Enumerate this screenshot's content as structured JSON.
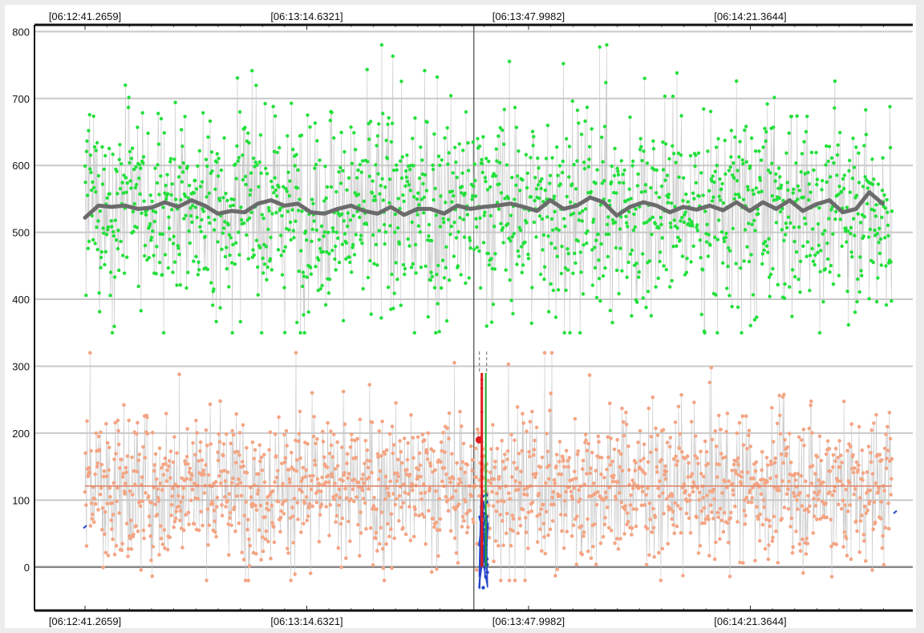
{
  "chart_data": {
    "type": "scatter",
    "title": "",
    "xlabel": "",
    "ylabel": "",
    "ylim": [
      -65,
      810
    ],
    "y_ticks": [
      0,
      100,
      200,
      300,
      400,
      500,
      600,
      700,
      800
    ],
    "y_tick_labels": [
      "0",
      "100",
      "200",
      "300",
      "400",
      "500",
      "600",
      "700",
      "800"
    ],
    "x_tick_labels_top": [
      "[06:12:41.2659]",
      "[06:13:14.6321]",
      "[06:13:47.9982]",
      "[06:14:21.3644]"
    ],
    "x_tick_labels_bottom": [
      "[06:12:41.2659]",
      "[06:13:14.6321]",
      "[06:13:47.9982]",
      "[06:14:21.3644]"
    ],
    "x_range_seconds": [
      0,
      121.4
    ],
    "x_ticks_seconds": [
      0,
      33.3662,
      66.7323,
      100.0985
    ],
    "cursor_time_seconds": 58.5,
    "grid": true,
    "legend": "none",
    "colors": {
      "upper_points": "#22e03a",
      "upper_connector": "#c9c9c9",
      "upper_trend": "#6b6b6b",
      "lower_points": "#f4a584",
      "lower_connector": "#c9c9c9",
      "lower_mean": "#e0876a",
      "marker_red": "#e01b1b",
      "marker_green": "#1ea52a",
      "marker_blue": "#2545c8",
      "cursor": "#444444",
      "gridline": "#c8c8c8",
      "zero_line": "#888888"
    },
    "series": [
      {
        "kind": "upper_scatter",
        "mean": 535,
        "spread": [
          350,
          780
        ],
        "point_count": 1600,
        "trend": [
          [
            0,
            522
          ],
          [
            2,
            540
          ],
          [
            4,
            538
          ],
          [
            6,
            540
          ],
          [
            8,
            535
          ],
          [
            10,
            537
          ],
          [
            12,
            545
          ],
          [
            14,
            538
          ],
          [
            16,
            548
          ],
          [
            18,
            540
          ],
          [
            20,
            528
          ],
          [
            22,
            532
          ],
          [
            24,
            530
          ],
          [
            26,
            543
          ],
          [
            28,
            548
          ],
          [
            30,
            540
          ],
          [
            32,
            543
          ],
          [
            34,
            530
          ],
          [
            36,
            528
          ],
          [
            38,
            535
          ],
          [
            40,
            540
          ],
          [
            42,
            532
          ],
          [
            44,
            528
          ],
          [
            46,
            538
          ],
          [
            48,
            526
          ],
          [
            50,
            535
          ],
          [
            52,
            535
          ],
          [
            54,
            528
          ],
          [
            56,
            540
          ],
          [
            58,
            535
          ],
          [
            60,
            538
          ],
          [
            62,
            540
          ],
          [
            64,
            543
          ],
          [
            66,
            538
          ],
          [
            68,
            532
          ],
          [
            70,
            548
          ],
          [
            72,
            535
          ],
          [
            74,
            540
          ],
          [
            76,
            552
          ],
          [
            78,
            545
          ],
          [
            80,
            525
          ],
          [
            82,
            538
          ],
          [
            84,
            545
          ],
          [
            86,
            540
          ],
          [
            88,
            530
          ],
          [
            90,
            538
          ],
          [
            92,
            534
          ],
          [
            94,
            540
          ],
          [
            96,
            533
          ],
          [
            98,
            545
          ],
          [
            100,
            532
          ],
          [
            102,
            545
          ],
          [
            104,
            535
          ],
          [
            106,
            548
          ],
          [
            108,
            532
          ],
          [
            110,
            542
          ],
          [
            112,
            548
          ],
          [
            114,
            530
          ],
          [
            116,
            535
          ],
          [
            118,
            560
          ],
          [
            120,
            543
          ]
        ]
      },
      {
        "kind": "lower_scatter",
        "mean": 121,
        "spread": [
          -20,
          320
        ],
        "point_count": 1600
      },
      {
        "kind": "vertical_markers",
        "red_x_seconds": 59.7,
        "green_x_seconds": 60.3,
        "red_range": [
          0,
          290
        ],
        "green_range": [
          0,
          290
        ],
        "blue_range": [
          -35,
          110
        ],
        "red_dot": [
          59.3,
          190
        ],
        "dashed_top": 322
      }
    ]
  }
}
